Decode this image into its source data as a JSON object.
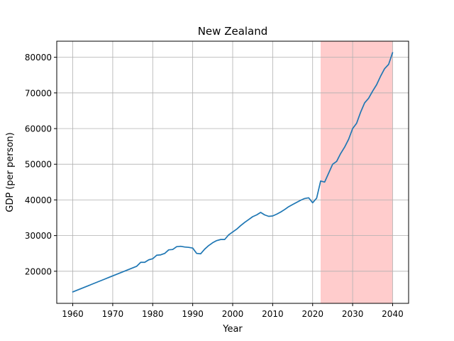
{
  "chart_data": {
    "type": "line",
    "title": "New Zealand",
    "xlabel": "Year",
    "ylabel": "GDP (per person)",
    "xlim": [
      1956,
      2044
    ],
    "ylim": [
      11000,
      84500
    ],
    "xticks": [
      1960,
      1970,
      1980,
      1990,
      2000,
      2010,
      2020,
      2030,
      2040
    ],
    "yticks": [
      20000,
      30000,
      40000,
      50000,
      60000,
      70000,
      80000
    ],
    "grid": true,
    "highlight_span": {
      "x_start": 2022,
      "x_end": 2040,
      "color": "#ffcccc"
    },
    "series": [
      {
        "color": "#1f77b4",
        "x": [
          1960,
          1961,
          1962,
          1963,
          1964,
          1965,
          1966,
          1967,
          1968,
          1969,
          1970,
          1971,
          1972,
          1973,
          1974,
          1975,
          1976,
          1977,
          1978,
          1979,
          1980,
          1981,
          1982,
          1983,
          1984,
          1985,
          1986,
          1987,
          1988,
          1989,
          1990,
          1991,
          1992,
          1993,
          1994,
          1995,
          1996,
          1997,
          1998,
          1999,
          2000,
          2001,
          2002,
          2003,
          2004,
          2005,
          2006,
          2007,
          2008,
          2009,
          2010,
          2011,
          2012,
          2013,
          2014,
          2015,
          2016,
          2017,
          2018,
          2019,
          2020,
          2021,
          2022,
          2023,
          2024,
          2025,
          2026,
          2027,
          2028,
          2029,
          2030,
          2031,
          2032,
          2033,
          2034,
          2035,
          2036,
          2037,
          2038,
          2039,
          2040
        ],
        "y": [
          14200,
          14650,
          15100,
          15550,
          16000,
          16450,
          16900,
          17350,
          17800,
          18250,
          18700,
          19150,
          19600,
          20050,
          20500,
          20950,
          21400,
          22500,
          22500,
          23200,
          23500,
          24500,
          24600,
          25000,
          26000,
          26100,
          26900,
          27000,
          26800,
          26700,
          26500,
          25000,
          24900,
          26200,
          27200,
          28000,
          28600,
          28900,
          28900,
          30200,
          31000,
          31800,
          32800,
          33700,
          34500,
          35300,
          35800,
          36500,
          35800,
          35400,
          35500,
          36000,
          36600,
          37300,
          38100,
          38700,
          39300,
          39900,
          40400,
          40600,
          39200,
          40500,
          45300,
          45000,
          47500,
          50000,
          50800,
          53000,
          54800,
          57000,
          60000,
          61500,
          64600,
          67200,
          68500,
          70500,
          72300,
          74700,
          76800,
          78000,
          81300
        ]
      }
    ]
  }
}
